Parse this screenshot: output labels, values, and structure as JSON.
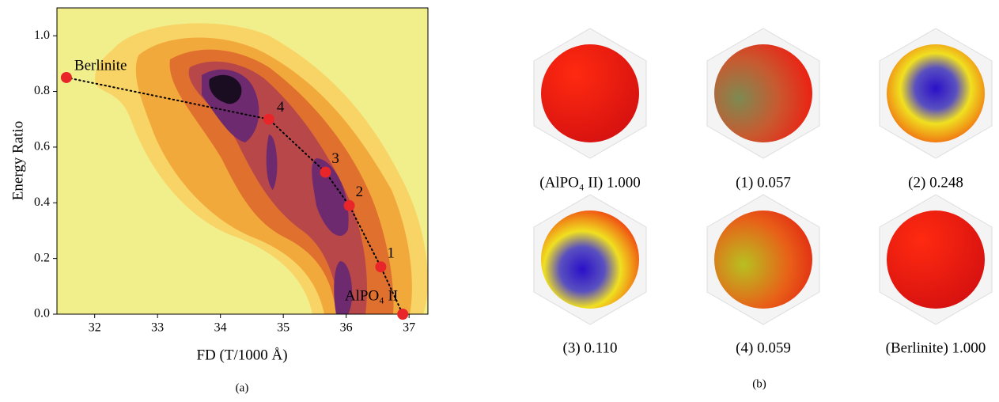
{
  "chart_data": {
    "type": "scatter",
    "x_label": "FD (T/1000 Å)",
    "y_label": "Energy Ratio",
    "x": [
      31.55,
      34.77,
      35.67,
      36.05,
      36.55,
      36.9
    ],
    "values": [
      0.85,
      0.7,
      0.51,
      0.39,
      0.17,
      0.0
    ],
    "point_labels": [
      "Berlinite",
      "4",
      "3",
      "2",
      "1",
      "AlPO₄ II"
    ],
    "color": "#e8262a",
    "line_color": "#000000",
    "xlim": [
      31.4,
      37.3
    ],
    "ylim": [
      0,
      1.1
    ],
    "xticks": [
      32,
      33,
      34,
      35,
      36,
      37
    ],
    "yticks": [
      {
        "value": 0,
        "label": "0.0"
      },
      0.2,
      0.4,
      0.6,
      0.8,
      {
        "value": 1,
        "label": "1.0"
      }
    ],
    "panel_label": "(a)"
  },
  "panel_b": {
    "label": "(b)",
    "captions": [
      "(AlPO₄ II) 1.000",
      "(1) 0.057",
      "(2) 0.248",
      "(3) 0.110",
      "(4) 0.059",
      "(Berlinite) 1.000"
    ]
  }
}
